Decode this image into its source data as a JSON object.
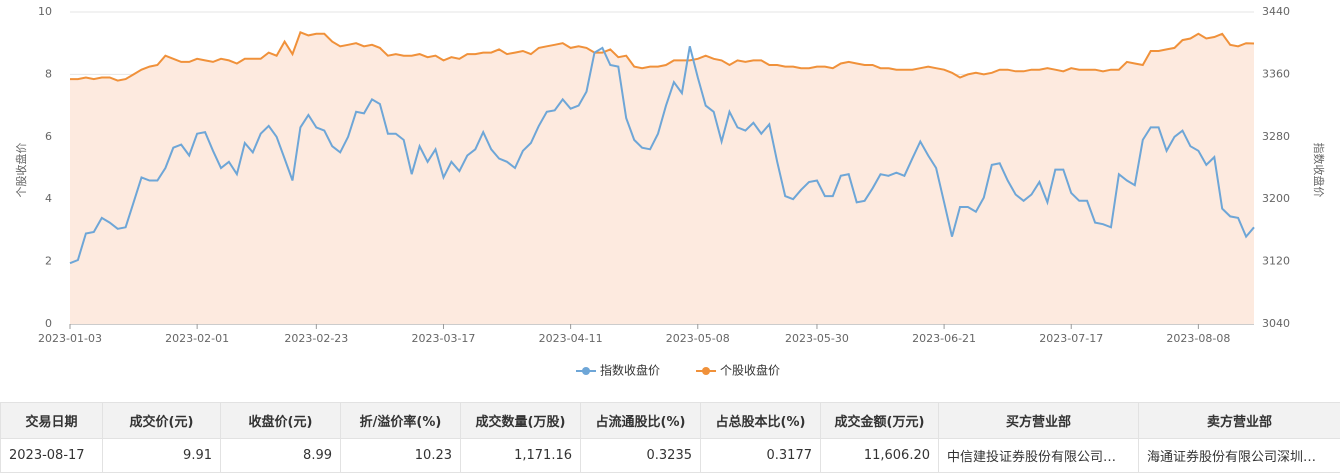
{
  "chart_data": {
    "type": "line",
    "y_label": "个股收盘价",
    "y2_label": "指数收盘价",
    "categories": [
      "2023-01-03",
      null,
      null,
      null,
      null,
      null,
      null,
      null,
      null,
      null,
      null,
      null,
      null,
      null,
      null,
      null,
      "2023-02-01",
      null,
      null,
      null,
      null,
      null,
      null,
      null,
      null,
      null,
      null,
      null,
      null,
      null,
      null,
      "2023-02-23",
      null,
      null,
      null,
      null,
      null,
      null,
      null,
      null,
      null,
      null,
      null,
      null,
      null,
      null,
      null,
      "2023-03-17",
      null,
      null,
      null,
      null,
      null,
      null,
      null,
      null,
      null,
      null,
      null,
      null,
      null,
      null,
      null,
      "2023-04-11",
      null,
      null,
      null,
      null,
      null,
      null,
      null,
      null,
      null,
      null,
      null,
      null,
      null,
      null,
      null,
      "2023-05-08",
      null,
      null,
      null,
      null,
      null,
      null,
      null,
      null,
      null,
      null,
      null,
      null,
      null,
      null,
      "2023-05-30",
      null,
      null,
      null,
      null,
      null,
      null,
      null,
      null,
      null,
      null,
      null,
      null,
      null,
      null,
      null,
      "2023-06-21",
      null,
      null,
      null,
      null,
      null,
      null,
      null,
      null,
      null,
      null,
      null,
      null,
      null,
      null,
      null,
      "2023-07-17",
      null,
      null,
      null,
      null,
      null,
      null,
      null,
      null,
      null,
      null,
      null,
      null,
      null,
      null,
      null,
      "2023-08-08",
      null,
      null,
      null,
      null,
      null,
      null,
      null
    ],
    "series": [
      {
        "name": "指数收盘价",
        "color": "#6ea6d7",
        "axis": "y2",
        "values": [
          3118,
          3122,
          3156,
          3158,
          3176,
          3170,
          3162,
          3164,
          3196,
          3228,
          3224,
          3224,
          3240,
          3266,
          3270,
          3256,
          3284,
          3286,
          3262,
          3240,
          3248,
          3232,
          3272,
          3260,
          3284,
          3294,
          3280,
          3252,
          3224,
          3292,
          3308,
          3292,
          3288,
          3268,
          3260,
          3280,
          3312,
          3310,
          3328,
          3322,
          3284,
          3284,
          3276,
          3232,
          3268,
          3248,
          3264,
          3228,
          3248,
          3236,
          3256,
          3264,
          3286,
          3264,
          3252,
          3248,
          3240,
          3262,
          3272,
          3294,
          3312,
          3314,
          3328,
          3316,
          3320,
          3338,
          3388,
          3394,
          3372,
          3370,
          3304,
          3276,
          3266,
          3264,
          3284,
          3320,
          3350,
          3336,
          3396,
          3356,
          3320,
          3312,
          3274,
          3312,
          3292,
          3288,
          3298,
          3284,
          3296,
          3248,
          3204,
          3200,
          3212,
          3222,
          3224,
          3204,
          3204,
          3230,
          3232,
          3196,
          3198,
          3214,
          3232,
          3230,
          3234,
          3230,
          3252,
          3274,
          3256,
          3240,
          3196,
          3152,
          3190,
          3190,
          3184,
          3202,
          3244,
          3246,
          3224,
          3206,
          3198,
          3206,
          3222,
          3196,
          3238,
          3238,
          3208,
          3198,
          3198,
          3170,
          3168,
          3164,
          3232,
          3224,
          3218,
          3276,
          3292,
          3292,
          3262,
          3280,
          3288,
          3268,
          3262,
          3244,
          3254,
          3188,
          3178,
          3176,
          3152,
          3164
        ]
      },
      {
        "name": "个股收盘价",
        "color": "#f0913a",
        "axis": "y",
        "area_color": "#fdeadf",
        "values": [
          7.85,
          7.85,
          7.9,
          7.85,
          7.9,
          7.9,
          7.8,
          7.85,
          8.0,
          8.15,
          8.25,
          8.3,
          8.6,
          8.5,
          8.4,
          8.4,
          8.5,
          8.45,
          8.4,
          8.5,
          8.45,
          8.35,
          8.5,
          8.5,
          8.5,
          8.7,
          8.6,
          9.05,
          8.65,
          9.35,
          9.25,
          9.3,
          9.3,
          9.05,
          8.9,
          8.95,
          9.0,
          8.9,
          8.95,
          8.85,
          8.6,
          8.65,
          8.6,
          8.6,
          8.65,
          8.55,
          8.6,
          8.45,
          8.55,
          8.5,
          8.65,
          8.65,
          8.7,
          8.7,
          8.8,
          8.65,
          8.7,
          8.75,
          8.65,
          8.85,
          8.9,
          8.95,
          9.0,
          8.85,
          8.9,
          8.85,
          8.7,
          8.7,
          8.8,
          8.55,
          8.6,
          8.25,
          8.2,
          8.25,
          8.25,
          8.3,
          8.45,
          8.45,
          8.45,
          8.5,
          8.6,
          8.5,
          8.45,
          8.3,
          8.45,
          8.4,
          8.45,
          8.45,
          8.3,
          8.3,
          8.25,
          8.25,
          8.2,
          8.2,
          8.25,
          8.25,
          8.2,
          8.35,
          8.4,
          8.35,
          8.3,
          8.3,
          8.2,
          8.2,
          8.15,
          8.15,
          8.15,
          8.2,
          8.25,
          8.2,
          8.15,
          8.05,
          7.9,
          8.0,
          8.05,
          8.0,
          8.05,
          8.15,
          8.15,
          8.1,
          8.1,
          8.15,
          8.15,
          8.2,
          8.15,
          8.1,
          8.2,
          8.15,
          8.15,
          8.15,
          8.1,
          8.15,
          8.15,
          8.4,
          8.35,
          8.3,
          8.75,
          8.75,
          8.8,
          8.85,
          9.1,
          9.15,
          9.3,
          9.15,
          9.2,
          9.3,
          8.95,
          8.9,
          9.0,
          8.99
        ]
      }
    ],
    "ylim": [
      0,
      10
    ],
    "yticks": [
      0,
      2,
      4,
      6,
      8,
      10
    ],
    "y2lim": [
      3040,
      3440
    ],
    "y2ticks": [
      3040,
      3120,
      3200,
      3280,
      3360,
      3440
    ],
    "grid": true,
    "legend": "bottom"
  },
  "table": {
    "headers": [
      "交易日期",
      "成交价(元)",
      "收盘价(元)",
      "折/溢价率(%)",
      "成交数量(万股)",
      "占流通股比(%)",
      "占总股本比(%)",
      "成交金额(万元)",
      "买方营业部",
      "卖方营业部"
    ],
    "rows": [
      [
        "2023-08-17",
        "9.91",
        "8.99",
        "10.23",
        "1,171.16",
        "0.3235",
        "0.3177",
        "11,606.20",
        "中信建投证券股份有限公司…",
        "海通证券股份有限公司深圳…"
      ]
    ]
  }
}
